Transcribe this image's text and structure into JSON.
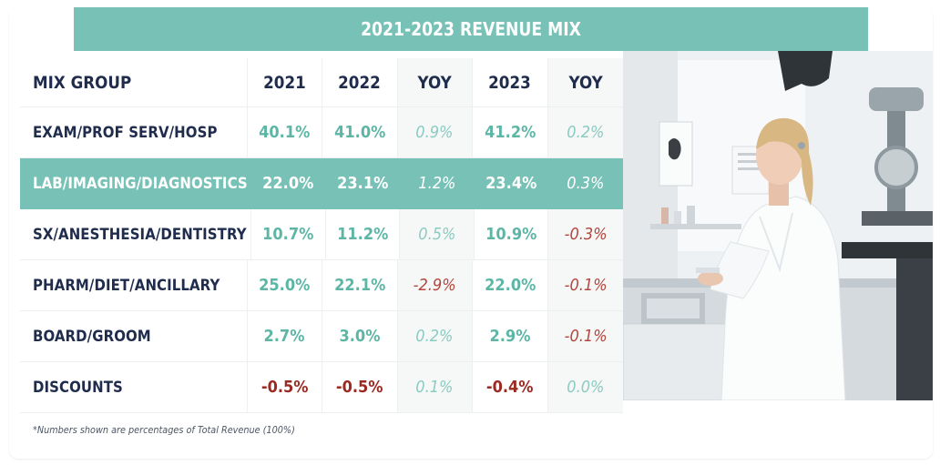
{
  "title": "2021-2023 REVENUE MIX",
  "header": {
    "label": "MIX GROUP",
    "c1": "2021",
    "c2": "2022",
    "c3": "YOY",
    "c4": "2023",
    "c5": "YOY"
  },
  "rows": [
    {
      "label": "EXAM/PROF SERV/HOSP",
      "v2021": "40.1%",
      "v2022": "41.0%",
      "yoy1": "0.9%",
      "v2023": "41.2%",
      "yoy2": "0.2%"
    },
    {
      "label": "LAB/IMAGING/DIAGNOSTICS",
      "v2021": "22.0%",
      "v2022": "23.1%",
      "yoy1": "1.2%",
      "v2023": "23.4%",
      "yoy2": "0.3%"
    },
    {
      "label": "SX/ANESTHESIA/DENTISTRY",
      "v2021": "10.7%",
      "v2022": "11.2%",
      "yoy1": "0.5%",
      "v2023": "10.9%",
      "yoy2": "-0.3%"
    },
    {
      "label": "PHARM/DIET/ANCILLARY",
      "v2021": "25.0%",
      "v2022": "22.1%",
      "yoy1": "-2.9%",
      "v2023": "22.0%",
      "yoy2": "-0.1%"
    },
    {
      "label": "BOARD/GROOM",
      "v2021": "2.7%",
      "v2022": "3.0%",
      "yoy1": "0.2%",
      "v2023": "2.9%",
      "yoy2": "-0.1%"
    },
    {
      "label": "DISCOUNTS",
      "v2021": "-0.5%",
      "v2022": "-0.5%",
      "yoy1": "0.1%",
      "v2023": "-0.4%",
      "yoy2": "0.0%"
    }
  ],
  "footnote": "*Numbers shown are percentages of Total Revenue (100%)",
  "colors": {
    "accent": "#78c1b6",
    "positive": "#5db6a5",
    "negative": "#9b2a22",
    "text": "#1f2c4c"
  },
  "photo": {
    "icon": "lab-technician-photo"
  }
}
